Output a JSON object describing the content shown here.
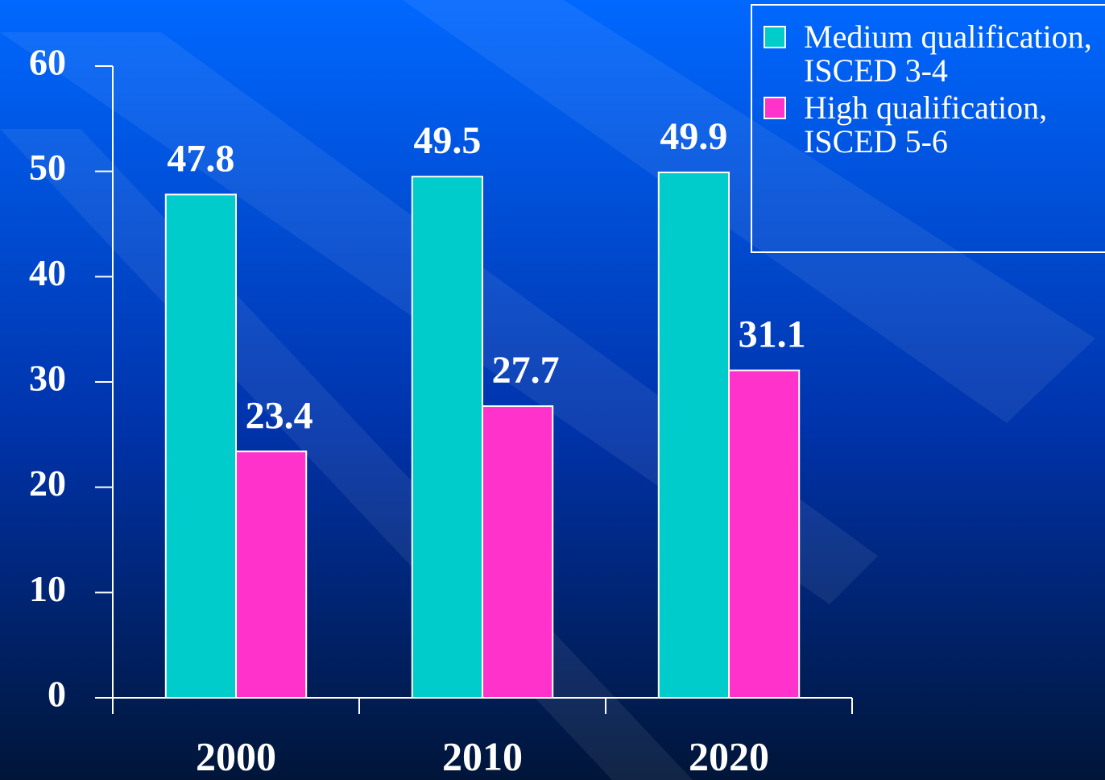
{
  "chart_data": {
    "type": "bar",
    "categories": [
      "2000",
      "2010",
      "2020"
    ],
    "series": [
      {
        "name": "Medium qualification, ISCED 3-4",
        "color": "#00cccc",
        "values": [
          47.8,
          49.5,
          49.9
        ]
      },
      {
        "name": "High qualification, ISCED 5-6",
        "color": "#ff33cc",
        "values": [
          23.4,
          27.7,
          31.1
        ]
      }
    ],
    "ylim": [
      0,
      60
    ],
    "yticks": [
      0,
      10,
      20,
      30,
      40,
      50,
      60
    ],
    "legend": "top-right"
  }
}
